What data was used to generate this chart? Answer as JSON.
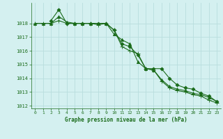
{
  "title": "Graphe pression niveau de la mer (hPa)",
  "background_color": "#d4f0f0",
  "grid_color": "#b8dede",
  "line_color": "#1a6b1a",
  "marker_color": "#1a6b1a",
  "xlim": [
    -0.5,
    23.5
  ],
  "ylim": [
    1011.8,
    1019.5
  ],
  "yticks": [
    1012,
    1013,
    1014,
    1015,
    1016,
    1017,
    1018
  ],
  "xticks": [
    0,
    1,
    2,
    3,
    4,
    5,
    6,
    7,
    8,
    9,
    10,
    11,
    12,
    13,
    14,
    15,
    16,
    17,
    18,
    19,
    20,
    21,
    22,
    23
  ],
  "series": [
    {
      "x": [
        0,
        1,
        2,
        3,
        4,
        5,
        6,
        7,
        8,
        9,
        10,
        11,
        12,
        13,
        14,
        15,
        16,
        17,
        18,
        19,
        20,
        21,
        22,
        23
      ],
      "y": [
        1018.0,
        1018.0,
        1018.0,
        1018.2,
        1018.0,
        1018.0,
        1018.0,
        1018.0,
        1017.9,
        1018.0,
        1017.5,
        1016.3,
        1016.0,
        1015.8,
        1014.7,
        1014.6,
        1013.8,
        1013.3,
        1013.1,
        1013.0,
        1012.8,
        1012.7,
        1012.4,
        1012.2
      ],
      "marker": "+",
      "markersize": 4
    },
    {
      "x": [
        0,
        1,
        2,
        3,
        4,
        5,
        6,
        7,
        8,
        9,
        10,
        11,
        12,
        13,
        14,
        15,
        16,
        17,
        18,
        19,
        20,
        21,
        22,
        23
      ],
      "y": [
        1018.0,
        1018.0,
        1018.0,
        1018.5,
        1018.1,
        1018.0,
        1018.0,
        1018.0,
        1018.0,
        1018.0,
        1017.2,
        1016.8,
        1016.5,
        1015.2,
        1014.7,
        1014.6,
        1013.9,
        1013.4,
        1013.2,
        1013.1,
        1012.9,
        1012.8,
        1012.6,
        1012.3
      ],
      "marker": "^",
      "markersize": 3
    },
    {
      "x": [
        2,
        3,
        4,
        5,
        6,
        7,
        8,
        9,
        10,
        11,
        12,
        13,
        14,
        15,
        16,
        17,
        18,
        19,
        20,
        21,
        22,
        23
      ],
      "y": [
        1018.2,
        1019.0,
        1018.0,
        1018.0,
        1018.0,
        1018.0,
        1018.0,
        1018.0,
        1017.5,
        1016.5,
        1016.3,
        1015.7,
        1014.7,
        1014.7,
        1014.7,
        1014.0,
        1013.5,
        1013.3,
        1013.2,
        1012.9,
        1012.7,
        1012.3
      ],
      "marker": "D",
      "markersize": 2.5
    }
  ]
}
